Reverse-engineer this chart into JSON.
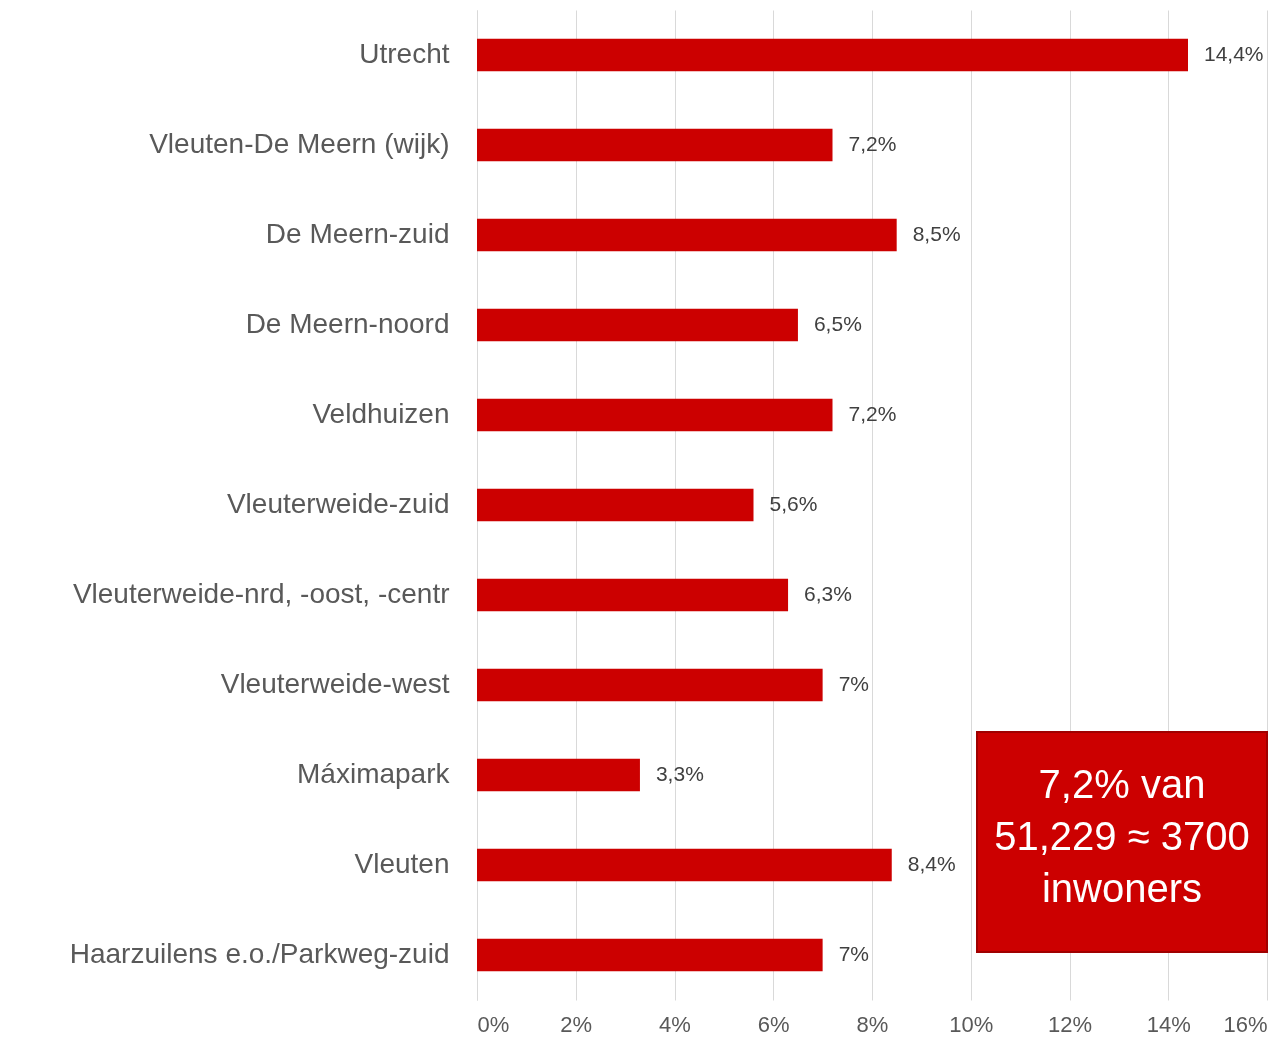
{
  "chart_data": {
    "type": "bar",
    "orientation": "horizontal",
    "categories": [
      "Utrecht",
      "Vleuten-De Meern (wijk)",
      "De Meern-zuid",
      "De Meern-noord",
      "Veldhuizen",
      "Vleuterweide-zuid",
      "Vleuterweide-nrd, -oost, -centr",
      "Vleuterweide-west",
      "Máximapark",
      "Vleuten",
      "Haarzuilens e.o./Parkweg-zuid"
    ],
    "values": [
      14.4,
      7.2,
      8.5,
      6.5,
      7.2,
      5.6,
      6.3,
      7,
      3.3,
      8.4,
      7
    ],
    "value_labels": [
      "14,4%",
      "7,2%",
      "8,5%",
      "6,5%",
      "7,2%",
      "5,6%",
      "6,3%",
      "7%",
      "3,3%",
      "8,4%",
      "7%"
    ],
    "color": "#cc0000",
    "xlim": [
      0,
      16
    ],
    "xticks": [
      {
        "value": 0,
        "label": "0%"
      },
      {
        "value": 2,
        "label": "2%"
      },
      {
        "value": 4,
        "label": "4%"
      },
      {
        "value": 6,
        "label": "6%"
      },
      {
        "value": 8,
        "label": "8%"
      },
      {
        "value": 10,
        "label": "10%"
      },
      {
        "value": 12,
        "label": "12%"
      },
      {
        "value": 14,
        "label": "14%"
      },
      {
        "value": 16,
        "label": "16%"
      }
    ],
    "grid": "x",
    "annotations": [
      "7,2% van\n51,229 ≈ 3700\ninwoners"
    ]
  }
}
